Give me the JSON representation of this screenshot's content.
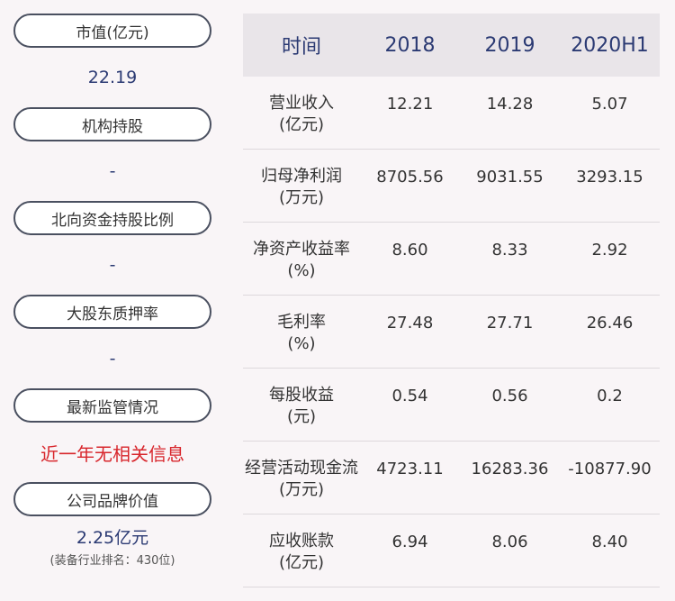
{
  "left": [
    {
      "label": "市值(亿元)",
      "value": "22.19",
      "style": "normal"
    },
    {
      "label": "机构持股",
      "value": "-",
      "style": "normal"
    },
    {
      "label": "北向资金持股比例",
      "value": "-",
      "style": "normal"
    },
    {
      "label": "大股东质押率",
      "value": "-",
      "style": "normal"
    },
    {
      "label": "最新监管情况",
      "value": "近一年无相关信息",
      "style": "red"
    },
    {
      "label": "公司品牌价值",
      "value": "2.25亿元",
      "sub": "(装备行业排名：430位)",
      "style": "normal"
    }
  ],
  "table": {
    "headers": [
      "时间",
      "2018",
      "2019",
      "2020H1"
    ],
    "rows": [
      {
        "metric": "营业收入",
        "unit": "(亿元)",
        "values": [
          "12.21",
          "14.28",
          "5.07"
        ]
      },
      {
        "metric": "归母净利润",
        "unit": "(万元)",
        "values": [
          "8705.56",
          "9031.55",
          "3293.15"
        ]
      },
      {
        "metric": "净资产收益率",
        "unit": "(%)",
        "values": [
          "8.60",
          "8.33",
          "2.92"
        ]
      },
      {
        "metric": "毛利率",
        "unit": "(%)",
        "values": [
          "27.48",
          "27.71",
          "26.46"
        ]
      },
      {
        "metric": "每股收益",
        "unit": "(元)",
        "values": [
          "0.54",
          "0.56",
          "0.2"
        ]
      },
      {
        "metric": "经营活动现金流",
        "unit": "(万元)",
        "values": [
          "4723.11",
          "16283.36",
          "-10877.90"
        ]
      },
      {
        "metric": "应收账款",
        "unit": "(亿元)",
        "values": [
          "6.94",
          "8.06",
          "8.40"
        ]
      }
    ]
  },
  "colors": {
    "accent": "#2b3a73",
    "alert": "#d8262c",
    "header_bg": "#e9e5e9",
    "page_bg": "#f9f5f7"
  }
}
